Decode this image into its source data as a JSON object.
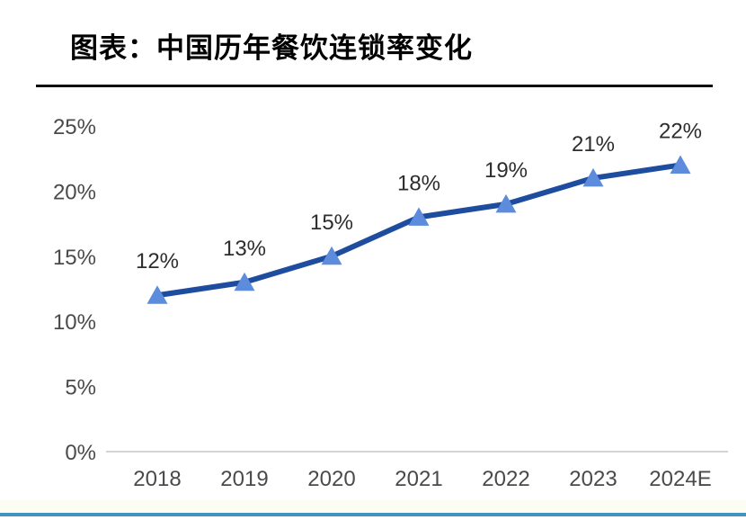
{
  "header": {
    "title": "图表：中国历年餐饮连锁率变化"
  },
  "chart_data": {
    "type": "line",
    "title": "中国历年餐饮连锁率变化",
    "categories": [
      "2018",
      "2019",
      "2020",
      "2021",
      "2022",
      "2023",
      "2024E"
    ],
    "values": [
      12,
      13,
      15,
      18,
      19,
      21,
      22
    ],
    "data_labels": [
      "12%",
      "13%",
      "15%",
      "18%",
      "19%",
      "21%",
      "22%"
    ],
    "y_ticks": [
      {
        "value": 0,
        "label": "0%"
      },
      {
        "value": 5,
        "label": "5%"
      },
      {
        "value": 10,
        "label": "10%"
      },
      {
        "value": 15,
        "label": "15%"
      },
      {
        "value": 20,
        "label": "20%"
      },
      {
        "value": 25,
        "label": "25%"
      }
    ],
    "ylim": [
      0,
      25
    ],
    "xlabel": "",
    "ylabel": "",
    "grid": "off",
    "legend": "none",
    "marker_shape": "triangle-up",
    "colors": {
      "line": "#1e4c9e",
      "marker": "#5d8cdc",
      "axis_line": "#d4d4d4",
      "axis_text": "#4a4a4a",
      "label_text": "#2d2d2d"
    }
  },
  "footer": {
    "accent_color": "#4193c1"
  }
}
